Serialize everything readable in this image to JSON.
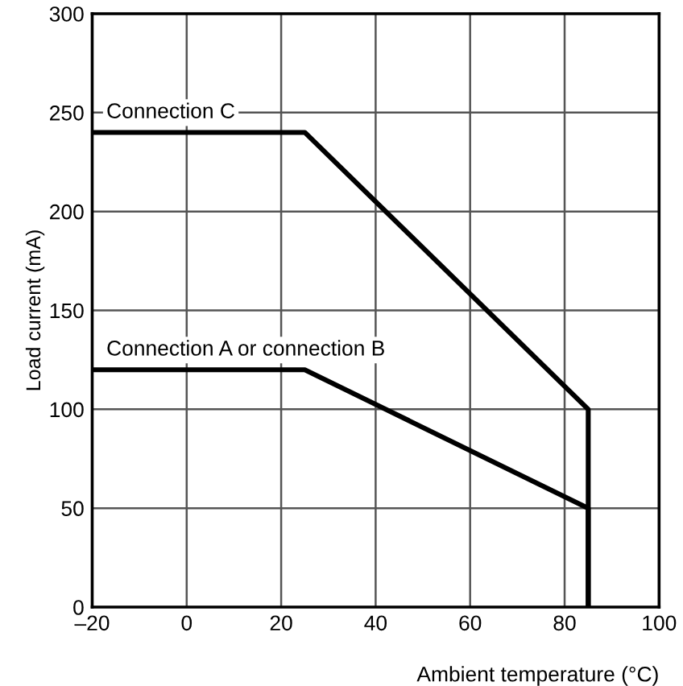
{
  "chart_data": {
    "type": "line",
    "xlabel": "Ambient temperature (°C)",
    "ylabel": "Load current (mA)",
    "series": [
      {
        "name": "Connection C",
        "color": "#000000",
        "x": [
          -20,
          25,
          85,
          85
        ],
        "values": [
          240,
          240,
          100,
          0
        ]
      },
      {
        "name": "Connection A or connection B",
        "color": "#000000",
        "x": [
          -20,
          25,
          85,
          85
        ],
        "values": [
          120,
          120,
          50,
          0
        ]
      }
    ],
    "xlim": [
      -20,
      100
    ],
    "xticks": [
      {
        "value": -20,
        "label": "–20"
      },
      0,
      20,
      40,
      60,
      80,
      100
    ],
    "ylim": [
      0,
      300
    ],
    "yticks": [
      0,
      50,
      100,
      150,
      200,
      250,
      300
    ],
    "grid": true,
    "legend": false,
    "marker": "none",
    "line_style": "solid"
  }
}
